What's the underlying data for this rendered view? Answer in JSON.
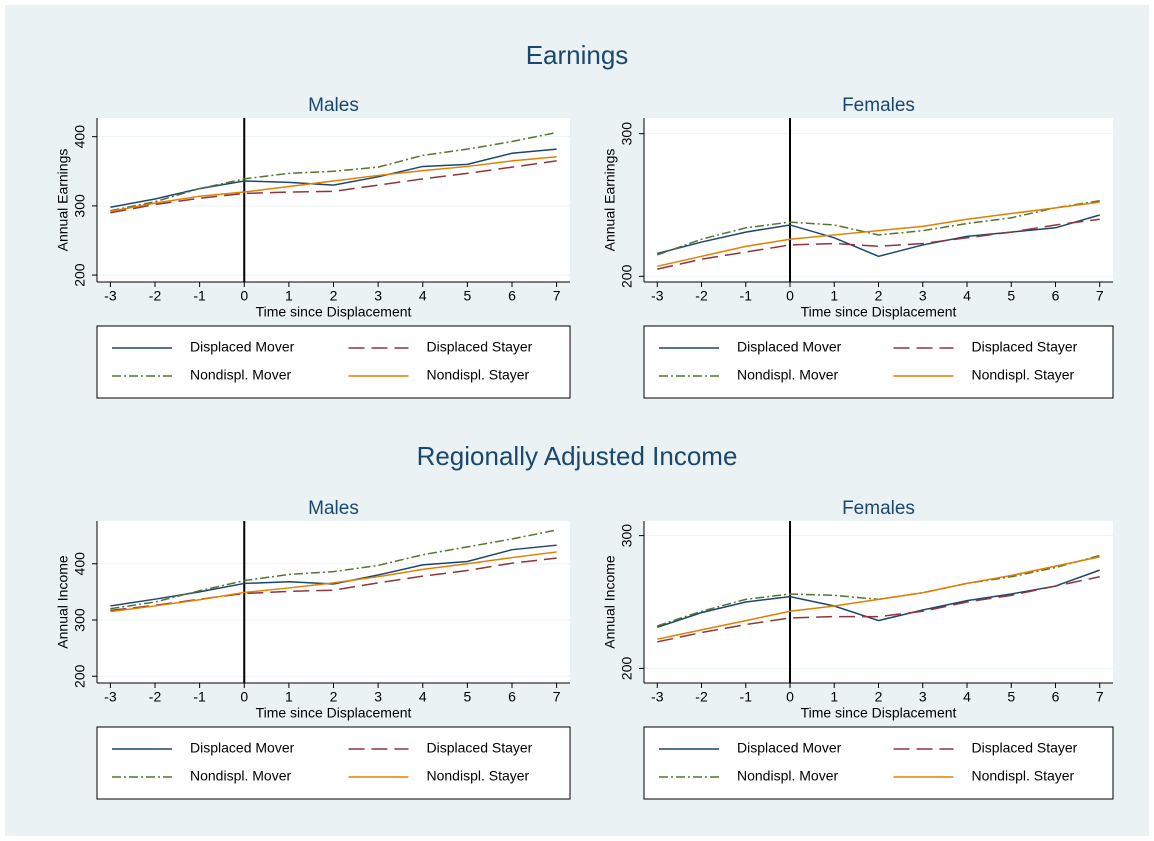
{
  "sections": [
    {
      "title": "Earnings"
    },
    {
      "title": "Regionally Adjusted Income"
    }
  ],
  "chart_data": [
    {
      "type": "line",
      "title": "Males",
      "ylabel": "Annual Earnings",
      "xlabel": "Time since Displacement",
      "x": [
        -3,
        -2,
        -1,
        0,
        1,
        2,
        3,
        4,
        5,
        6,
        7
      ],
      "xlim": [
        -3.3,
        7.3
      ],
      "xticks": [
        -3,
        -2,
        -1,
        0,
        1,
        2,
        3,
        4,
        5,
        6,
        7
      ],
      "ylim": [
        190,
        427
      ],
      "yticks": [
        200,
        300,
        400
      ],
      "grid": true,
      "vline": 0,
      "legend": "bottom",
      "series": [
        {
          "name": "Displaced Mover",
          "color": "#1a476f",
          "style": "solid",
          "values": [
            298,
            310,
            325,
            336,
            334,
            330,
            342,
            357,
            360,
            376,
            382
          ]
        },
        {
          "name": "Displaced Stayer",
          "color": "#90353b",
          "style": "dash",
          "values": [
            290,
            302,
            311,
            318,
            320,
            321,
            330,
            339,
            347,
            356,
            365
          ]
        },
        {
          "name": "Nondispl. Mover",
          "color": "#55752f",
          "style": "dashdot",
          "values": [
            293,
            306,
            325,
            339,
            347,
            350,
            356,
            373,
            382,
            393,
            406
          ]
        },
        {
          "name": "Nondispl. Stayer",
          "color": "#e37e00",
          "style": "solid",
          "values": [
            292,
            304,
            314,
            320,
            328,
            336,
            344,
            351,
            357,
            365,
            371
          ]
        }
      ]
    },
    {
      "type": "line",
      "title": "Females",
      "ylabel": "Annual Earnings",
      "xlabel": "Time since Displacement",
      "x": [
        -3,
        -2,
        -1,
        0,
        1,
        2,
        3,
        4,
        5,
        6,
        7
      ],
      "xlim": [
        -3.3,
        7.3
      ],
      "xticks": [
        -3,
        -2,
        -1,
        0,
        1,
        2,
        3,
        4,
        5,
        6,
        7
      ],
      "ylim": [
        196,
        311
      ],
      "yticks": [
        200,
        300
      ],
      "grid": true,
      "vline": 0,
      "legend": "bottom",
      "series": [
        {
          "name": "Displaced Mover",
          "color": "#1a476f",
          "style": "solid",
          "values": [
            216,
            224,
            231,
            236,
            227,
            214,
            222,
            228,
            231,
            234,
            243
          ]
        },
        {
          "name": "Displaced Stayer",
          "color": "#90353b",
          "style": "dash",
          "values": [
            205,
            212,
            217,
            222,
            223,
            221,
            223,
            227,
            231,
            236,
            240
          ]
        },
        {
          "name": "Nondispl. Mover",
          "color": "#55752f",
          "style": "dashdot",
          "values": [
            215,
            226,
            234,
            238,
            236,
            229,
            232,
            237,
            241,
            248,
            253
          ]
        },
        {
          "name": "Nondispl. Stayer",
          "color": "#e37e00",
          "style": "solid",
          "values": [
            207,
            214,
            221,
            226,
            229,
            232,
            235,
            240,
            244,
            248,
            252
          ]
        }
      ]
    },
    {
      "type": "line",
      "title": "Males",
      "ylabel": "Annual Income",
      "xlabel": "Time since Displacement",
      "x": [
        -3,
        -2,
        -1,
        0,
        1,
        2,
        3,
        4,
        5,
        6,
        7
      ],
      "xlim": [
        -3.3,
        7.3
      ],
      "xticks": [
        -3,
        -2,
        -1,
        0,
        1,
        2,
        3,
        4,
        5,
        6,
        7
      ],
      "ylim": [
        188,
        476
      ],
      "yticks": [
        200,
        300,
        400
      ],
      "grid": true,
      "vline": 0,
      "legend": "bottom",
      "series": [
        {
          "name": "Displaced Mover",
          "color": "#1a476f",
          "style": "solid",
          "values": [
            325,
            337,
            350,
            365,
            368,
            364,
            380,
            398,
            404,
            425,
            433
          ]
        },
        {
          "name": "Displaced Stayer",
          "color": "#90353b",
          "style": "dash",
          "values": [
            317,
            326,
            337,
            347,
            351,
            353,
            366,
            378,
            388,
            401,
            410
          ]
        },
        {
          "name": "Nondispl. Mover",
          "color": "#55752f",
          "style": "dashdot",
          "values": [
            320,
            332,
            352,
            370,
            381,
            386,
            397,
            416,
            430,
            444,
            460
          ]
        },
        {
          "name": "Nondispl. Stayer",
          "color": "#e37e00",
          "style": "solid",
          "values": [
            315,
            325,
            336,
            349,
            357,
            366,
            377,
            390,
            400,
            411,
            421
          ]
        }
      ]
    },
    {
      "type": "line",
      "title": "Females",
      "ylabel": "Annual Income",
      "xlabel": "Time since Displacement",
      "x": [
        -3,
        -2,
        -1,
        0,
        1,
        2,
        3,
        4,
        5,
        6,
        7
      ],
      "xlim": [
        -3.3,
        7.3
      ],
      "xticks": [
        -3,
        -2,
        -1,
        0,
        1,
        2,
        3,
        4,
        5,
        6,
        7
      ],
      "ylim": [
        189,
        311
      ],
      "yticks": [
        200,
        300
      ],
      "grid": true,
      "vline": 0,
      "legend": "bottom",
      "series": [
        {
          "name": "Displaced Mover",
          "color": "#1a476f",
          "style": "solid",
          "values": [
            231,
            242,
            250,
            254,
            247,
            236,
            244,
            251,
            256,
            262,
            274
          ]
        },
        {
          "name": "Displaced Stayer",
          "color": "#90353b",
          "style": "dash",
          "values": [
            220,
            227,
            233,
            238,
            239,
            239,
            243,
            250,
            255,
            262,
            269
          ]
        },
        {
          "name": "Nondispl. Mover",
          "color": "#55752f",
          "style": "dashdot",
          "values": [
            232,
            243,
            252,
            256,
            255,
            252,
            257,
            264,
            269,
            276,
            285
          ]
        },
        {
          "name": "Nondispl. Stayer",
          "color": "#e37e00",
          "style": "solid",
          "values": [
            222,
            229,
            236,
            243,
            247,
            252,
            257,
            264,
            270,
            277,
            284
          ]
        }
      ]
    }
  ]
}
